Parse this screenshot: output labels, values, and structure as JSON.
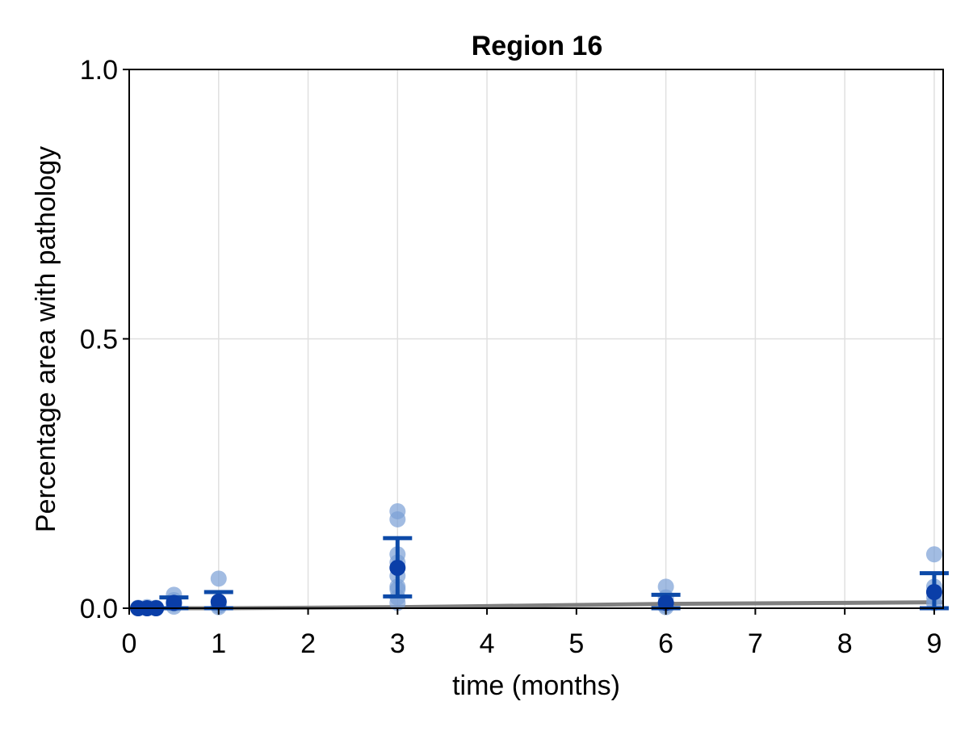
{
  "chart_data": {
    "type": "scatter",
    "title": "Region 16",
    "xlabel": "time (months)",
    "ylabel": "Percentage area with pathology",
    "xlim": [
      0,
      9.1
    ],
    "ylim": [
      0,
      1
    ],
    "x_ticks": [
      0,
      1,
      2,
      3,
      4,
      5,
      6,
      7,
      8,
      9
    ],
    "x_tick_labels": [
      "0",
      "1",
      "2",
      "3",
      "4",
      "5",
      "6",
      "7",
      "8",
      "9"
    ],
    "y_ticks": [
      0,
      0.5,
      1
    ],
    "y_tick_labels": [
      "0.0",
      "0.5",
      "1.0"
    ],
    "grid": true,
    "colors": {
      "observations": "#7b9fd6",
      "mean": "#0a3ea8",
      "error_bar": "#0d4aa8",
      "model_line": "#808080"
    },
    "observations": [
      {
        "x": 0.1,
        "y": 0.0
      },
      {
        "x": 0.1,
        "y": 0.001
      },
      {
        "x": 0.2,
        "y": 0.0
      },
      {
        "x": 0.2,
        "y": 0.002
      },
      {
        "x": 0.3,
        "y": 0.0
      },
      {
        "x": 0.3,
        "y": 0.001
      },
      {
        "x": 0.5,
        "y": 0.025
      },
      {
        "x": 0.5,
        "y": 0.015
      },
      {
        "x": 0.5,
        "y": 0.008
      },
      {
        "x": 0.5,
        "y": 0.003
      },
      {
        "x": 1.0,
        "y": 0.055
      },
      {
        "x": 1.0,
        "y": 0.012
      },
      {
        "x": 1.0,
        "y": 0.005
      },
      {
        "x": 1.0,
        "y": 0.002
      },
      {
        "x": 3.0,
        "y": 0.18
      },
      {
        "x": 3.0,
        "y": 0.165
      },
      {
        "x": 3.0,
        "y": 0.1
      },
      {
        "x": 3.0,
        "y": 0.085
      },
      {
        "x": 3.0,
        "y": 0.06
      },
      {
        "x": 3.0,
        "y": 0.04
      },
      {
        "x": 3.0,
        "y": 0.035
      },
      {
        "x": 3.0,
        "y": 0.02
      },
      {
        "x": 3.0,
        "y": 0.01
      },
      {
        "x": 6.0,
        "y": 0.04
      },
      {
        "x": 6.0,
        "y": 0.02
      },
      {
        "x": 6.0,
        "y": 0.01
      },
      {
        "x": 6.0,
        "y": 0.005
      },
      {
        "x": 6.0,
        "y": 0.002
      },
      {
        "x": 9.0,
        "y": 0.1
      },
      {
        "x": 9.0,
        "y": 0.04
      },
      {
        "x": 9.0,
        "y": 0.03
      },
      {
        "x": 9.0,
        "y": 0.02
      },
      {
        "x": 9.0,
        "y": 0.01
      }
    ],
    "means": [
      {
        "x": 0.1,
        "mean": 0.0,
        "lower": 0.0,
        "upper": 0.0
      },
      {
        "x": 0.2,
        "mean": 0.0,
        "lower": 0.0,
        "upper": 0.0
      },
      {
        "x": 0.3,
        "mean": 0.0,
        "lower": 0.0,
        "upper": 0.0
      },
      {
        "x": 0.5,
        "mean": 0.01,
        "lower": 0.0,
        "upper": 0.02
      },
      {
        "x": 1.0,
        "mean": 0.012,
        "lower": 0.0,
        "upper": 0.03
      },
      {
        "x": 3.0,
        "mean": 0.075,
        "lower": 0.022,
        "upper": 0.13
      },
      {
        "x": 6.0,
        "mean": 0.01,
        "lower": 0.0,
        "upper": 0.025
      },
      {
        "x": 9.0,
        "mean": 0.03,
        "lower": 0.0,
        "upper": 0.065
      }
    ],
    "model_line": [
      {
        "x": 0.0,
        "y": 0.0
      },
      {
        "x": 1.0,
        "y": 0.0
      },
      {
        "x": 2.0,
        "y": 0.001
      },
      {
        "x": 3.0,
        "y": 0.002
      },
      {
        "x": 4.0,
        "y": 0.004
      },
      {
        "x": 5.0,
        "y": 0.006
      },
      {
        "x": 6.0,
        "y": 0.008
      },
      {
        "x": 7.0,
        "y": 0.009
      },
      {
        "x": 8.0,
        "y": 0.01
      },
      {
        "x": 9.0,
        "y": 0.011
      },
      {
        "x": 9.1,
        "y": 0.011
      }
    ]
  }
}
